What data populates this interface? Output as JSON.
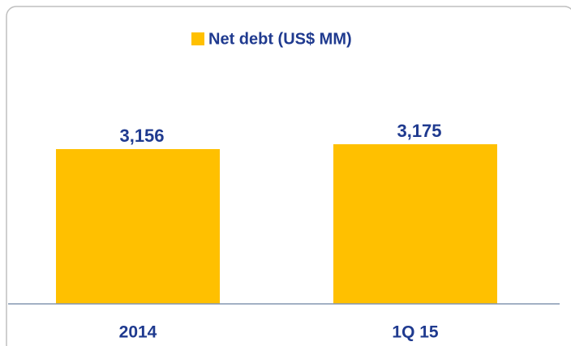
{
  "chart_data": {
    "type": "bar",
    "categories": [
      "2014",
      "1Q 15"
    ],
    "series": [
      {
        "name": "Net debt (US$ MM)",
        "color": "#ffc000",
        "values": [
          3156,
          3175
        ],
        "value_labels": [
          "3,156",
          "3,175"
        ]
      }
    ],
    "ylim": [
      2550,
      3300
    ],
    "legend": "top"
  }
}
